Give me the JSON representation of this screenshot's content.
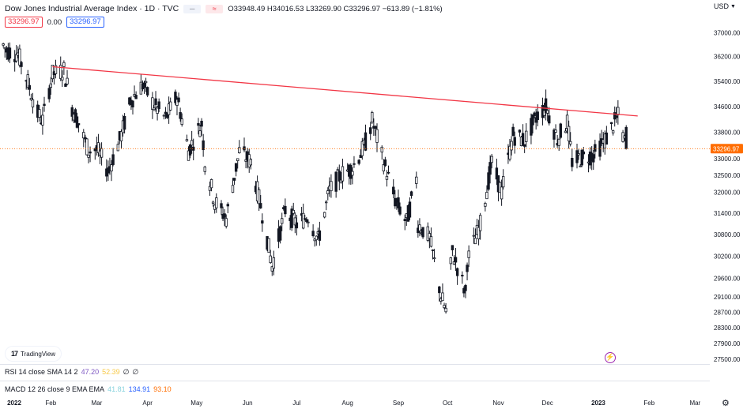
{
  "header": {
    "title": "Dow Jones Industrial Average Index · 1D · TVC",
    "ohlc": "O33948.49 H34016.53 L33269.90 C33296.97 −613.89 (−1.81%)",
    "price_box": "33296.97",
    "change_value": "0.00",
    "price_box2": "33296.97",
    "currency": "USD"
  },
  "logo_text": "TradingView",
  "price_axis": {
    "ticks": [
      37000,
      36200,
      35400,
      34600,
      33800,
      33000,
      32500,
      32000,
      31400,
      30800,
      30200,
      29600,
      29100,
      28700,
      28300,
      27900,
      27500
    ],
    "tick_labels": [
      "37000.00",
      "36200.00",
      "35400.00",
      "34600.00",
      "33800.00",
      "33000.00",
      "32500.00",
      "32000.00",
      "31400.00",
      "30800.00",
      "30200.00",
      "29600.00",
      "29100.00",
      "28700.00",
      "28300.00",
      "27900.00",
      "27500.00"
    ],
    "current_price_label": "33296.97"
  },
  "time_axis": [
    {
      "label": "2022",
      "bold": true
    },
    {
      "label": "Feb",
      "bold": false
    },
    {
      "label": "Mar",
      "bold": false
    },
    {
      "label": "Apr",
      "bold": false
    },
    {
      "label": "May",
      "bold": false
    },
    {
      "label": "Jun",
      "bold": false
    },
    {
      "label": "Jul",
      "bold": false
    },
    {
      "label": "Aug",
      "bold": false
    },
    {
      "label": "Sep",
      "bold": false
    },
    {
      "label": "Oct",
      "bold": false
    },
    {
      "label": "Nov",
      "bold": false
    },
    {
      "label": "Dec",
      "bold": false
    },
    {
      "label": "2023",
      "bold": true
    },
    {
      "label": "Feb",
      "bold": false
    },
    {
      "label": "Mar",
      "bold": false
    }
  ],
  "indicators": {
    "rsi": {
      "label": "RSI 14 close SMA 14 2",
      "v1": "47.20",
      "v2": "52.39",
      "v3": "∅",
      "v4": "∅"
    },
    "macd": {
      "label": "MACD 12 26 close 9 EMA EMA",
      "v1": "41.81",
      "v2": "134.91",
      "v3": "93.10"
    }
  },
  "colors": {
    "trendline": "#f23645",
    "candle": "#131722",
    "current_price": "#ff6d00",
    "rsi_line": "#7e57c2",
    "macd_line": "#2962ff"
  },
  "chart_data": {
    "type": "candlestick",
    "symbol": "Dow Jones Industrial Average Index",
    "interval": "1D",
    "x_range": [
      "2022-01-01",
      "2023-03-10"
    ],
    "ylim": [
      27500,
      37300
    ],
    "y_scale": "log",
    "grid": false,
    "last_close": 33296.97,
    "trendline": {
      "x": [
        "2022-02-02",
        "2023-01-25"
      ],
      "y": [
        35870,
        34300
      ]
    },
    "series": [
      {
        "date": "2022-01-03",
        "value": 36585
      },
      {
        "date": "2022-01-05",
        "value": 36407
      },
      {
        "date": "2022-01-12",
        "value": 36290
      },
      {
        "date": "2022-01-18",
        "value": 35368
      },
      {
        "date": "2022-01-24",
        "value": 34364
      },
      {
        "date": "2022-01-27",
        "value": 34160
      },
      {
        "date": "2022-02-02",
        "value": 35630
      },
      {
        "date": "2022-02-09",
        "value": 35768
      },
      {
        "date": "2022-02-14",
        "value": 34566
      },
      {
        "date": "2022-02-18",
        "value": 34079
      },
      {
        "date": "2022-02-24",
        "value": 33223
      },
      {
        "date": "2022-03-01",
        "value": 33295
      },
      {
        "date": "2022-03-08",
        "value": 32632
      },
      {
        "date": "2022-03-15",
        "value": 33544
      },
      {
        "date": "2022-03-22",
        "value": 34807
      },
      {
        "date": "2022-03-29",
        "value": 35294
      },
      {
        "date": "2022-04-05",
        "value": 34641
      },
      {
        "date": "2022-04-12",
        "value": 34220
      },
      {
        "date": "2022-04-19",
        "value": 34911
      },
      {
        "date": "2022-04-26",
        "value": 33240
      },
      {
        "date": "2022-05-04",
        "value": 34061
      },
      {
        "date": "2022-05-06",
        "value": 32899
      },
      {
        "date": "2022-05-12",
        "value": 31730
      },
      {
        "date": "2022-05-19",
        "value": 31253
      },
      {
        "date": "2022-05-27",
        "value": 33213
      },
      {
        "date": "2022-06-03",
        "value": 32900
      },
      {
        "date": "2022-06-10",
        "value": 31393
      },
      {
        "date": "2022-06-16",
        "value": 29927
      },
      {
        "date": "2022-06-24",
        "value": 31500
      },
      {
        "date": "2022-07-01",
        "value": 31097
      },
      {
        "date": "2022-07-08",
        "value": 31338
      },
      {
        "date": "2022-07-14",
        "value": 30630
      },
      {
        "date": "2022-07-21",
        "value": 32036
      },
      {
        "date": "2022-07-28",
        "value": 32529
      },
      {
        "date": "2022-08-04",
        "value": 32727
      },
      {
        "date": "2022-08-11",
        "value": 33336
      },
      {
        "date": "2022-08-16",
        "value": 34152
      },
      {
        "date": "2022-08-23",
        "value": 32910
      },
      {
        "date": "2022-08-30",
        "value": 31790
      },
      {
        "date": "2022-09-06",
        "value": 31145
      },
      {
        "date": "2022-09-12",
        "value": 32381
      },
      {
        "date": "2022-09-13",
        "value": 31104
      },
      {
        "date": "2022-09-20",
        "value": 30706
      },
      {
        "date": "2022-09-27",
        "value": 29134
      },
      {
        "date": "2022-09-30",
        "value": 28725
      },
      {
        "date": "2022-10-04",
        "value": 30316
      },
      {
        "date": "2022-10-12",
        "value": 29210
      },
      {
        "date": "2022-10-13",
        "value": 30038
      },
      {
        "date": "2022-10-21",
        "value": 31082
      },
      {
        "date": "2022-10-28",
        "value": 32861
      },
      {
        "date": "2022-11-03",
        "value": 32001
      },
      {
        "date": "2022-11-10",
        "value": 33715
      },
      {
        "date": "2022-11-17",
        "value": 33546
      },
      {
        "date": "2022-11-25",
        "value": 34347
      },
      {
        "date": "2022-11-30",
        "value": 34590
      },
      {
        "date": "2022-12-07",
        "value": 33597
      },
      {
        "date": "2022-12-13",
        "value": 34108
      },
      {
        "date": "2022-12-16",
        "value": 32920
      },
      {
        "date": "2022-12-22",
        "value": 33027
      },
      {
        "date": "2022-12-30",
        "value": 33147
      },
      {
        "date": "2023-01-06",
        "value": 33630
      },
      {
        "date": "2023-01-13",
        "value": 34302
      },
      {
        "date": "2023-01-18",
        "value": 33296.97
      }
    ]
  }
}
